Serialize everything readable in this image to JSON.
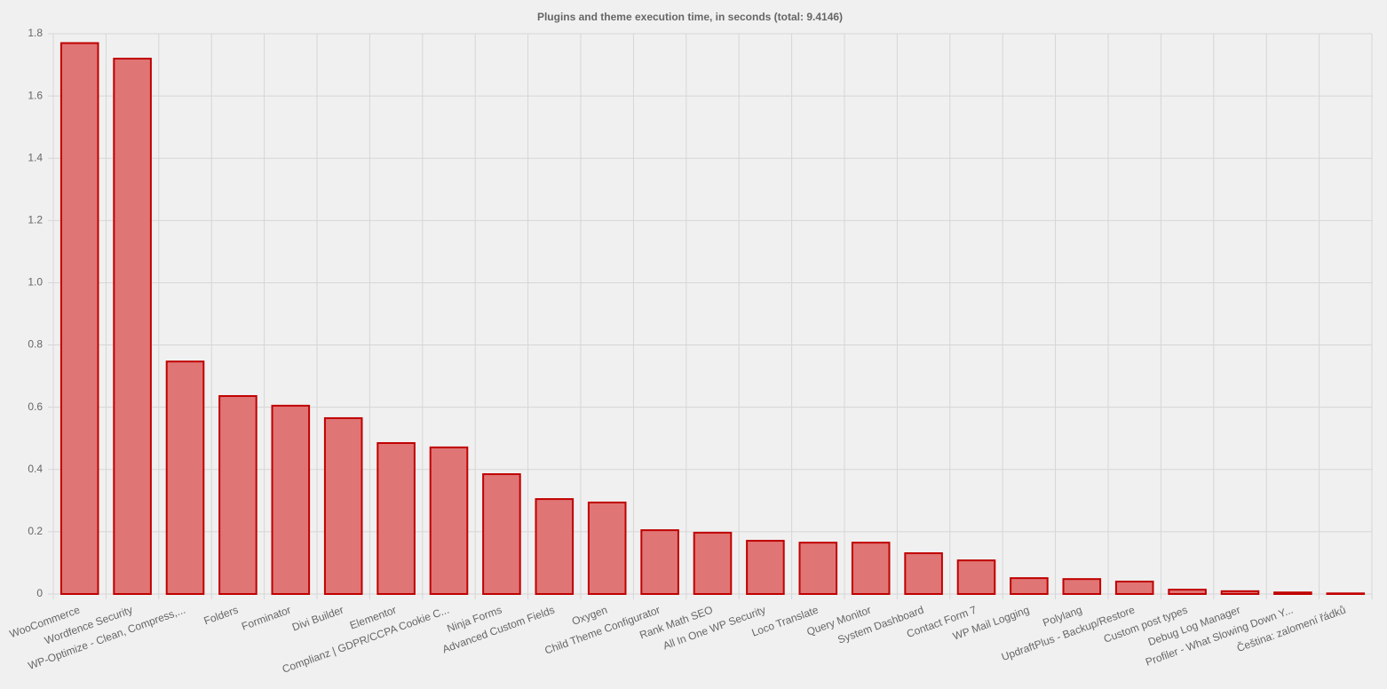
{
  "chart_data": {
    "type": "bar",
    "title": "Plugins and theme execution time, in seconds (total: 9.4146)",
    "categories": [
      "WooCommerce",
      "Wordfence Security",
      "WP-Optimize - Clean, Compress,...",
      "Folders",
      "Forminator",
      "Divi Builder",
      "Elementor",
      "Complianz | GDPR/CCPA Cookie C...",
      "Ninja Forms",
      "Advanced Custom Fields",
      "Oxygen",
      "Child Theme Configurator",
      "Rank Math SEO",
      "All In One WP Security",
      "Loco Translate",
      "Query Monitor",
      "System Dashboard",
      "Contact Form 7",
      "WP Mail Logging",
      "Polylang",
      "UpdraftPlus - Backup/Restore",
      "Custom post types",
      "Debug Log Manager",
      "Profiler - What Slowing Down Y...",
      "Čeština: zalomení řádků"
    ],
    "values": [
      1.77,
      1.72,
      0.747,
      0.636,
      0.605,
      0.565,
      0.485,
      0.471,
      0.385,
      0.305,
      0.294,
      0.205,
      0.197,
      0.171,
      0.165,
      0.165,
      0.131,
      0.108,
      0.051,
      0.048,
      0.04,
      0.014,
      0.009,
      0.005,
      0.002
    ],
    "color": "#e07575",
    "border_color": "#c00000",
    "ylim": [
      0,
      1.8
    ],
    "yticks": [
      0,
      0.2,
      0.4,
      0.6,
      0.8,
      {
        "value": 1,
        "label": "1.0"
      },
      1.2,
      1.4,
      1.6,
      1.8
    ],
    "grid": true
  }
}
